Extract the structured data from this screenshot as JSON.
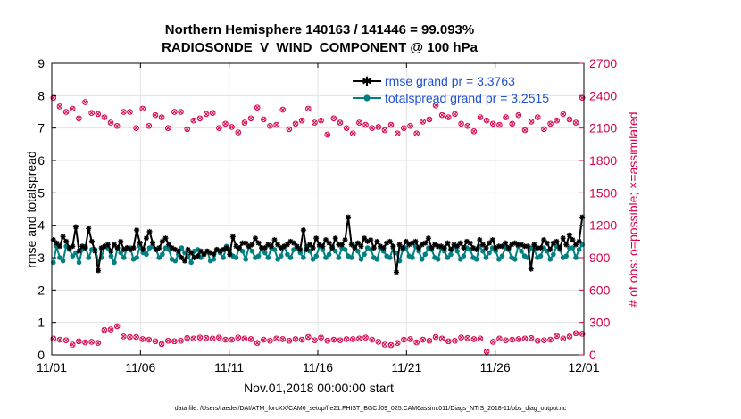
{
  "chart_data": {
    "type": "line",
    "title_line1": "Northern Hemisphere 140163 / 141446 = 99.093%",
    "title_line2": "RADIOSONDE_V_WIND_COMPONENT @ 100 hPa",
    "xlabel": "Nov.01,2018 00:00:00 start",
    "ylabel_left": "rmse and totalspread",
    "ylabel_right": "# of obs: o=possible; ×=assimilated",
    "footer": "data file: /Users/raeder/DAI/ATM_forcXX/CAM6_setup/f.e21.FHIST_BGC.f09_025.CAM6assim.011/Diags_NTrS_2018-11/obs_diag_output.nc",
    "x_range": [
      0,
      30
    ],
    "x_ticks": [
      0,
      5,
      10,
      15,
      20,
      25,
      30
    ],
    "x_tick_labels": [
      "11/01",
      "11/06",
      "11/11",
      "11/16",
      "11/21",
      "11/26",
      "12/01"
    ],
    "y_left_range": [
      0,
      9
    ],
    "y_left_ticks": [
      "0",
      "1",
      "2",
      "3",
      "4",
      "5",
      "6",
      "7",
      "8",
      "9"
    ],
    "y_right_range": [
      0,
      2700
    ],
    "y_right_ticks": [
      "0",
      "300",
      "600",
      "900",
      "1200",
      "1500",
      "1800",
      "2100",
      "2400",
      "2700"
    ],
    "grid": true,
    "legend_position": "top-right",
    "colors": {
      "rmse": "#000000",
      "spread": "#008080",
      "obs": "#d8004a",
      "grid": "#e3e3e3"
    },
    "series": [
      {
        "name": "rmse grand pr = 3.3763",
        "values": [
          3.55,
          3.45,
          3.35,
          3.65,
          3.5,
          3.3,
          3.35,
          3.95,
          3.2,
          3.35,
          3.3,
          3.9,
          3.5,
          3.2,
          2.6,
          3.3,
          3.35,
          3.4,
          3.2,
          3.4,
          3.3,
          3.5,
          3.25,
          3.3,
          3.25,
          3.3,
          3.85,
          3.45,
          3.25,
          3.6,
          3.8,
          3.45,
          3.25,
          3.3,
          3.5,
          3.6,
          3.4,
          3.3,
          3.25,
          3.2,
          3.0,
          2.9,
          3.25,
          3.15,
          3.0,
          3.05,
          3.2,
          3.1,
          3.2,
          3.15,
          3.1,
          3.25,
          3.2,
          3.25,
          3.3,
          3.1,
          3.65,
          3.35,
          3.3,
          3.45,
          3.45,
          3.35,
          3.4,
          3.6,
          3.45,
          3.3,
          3.3,
          3.4,
          3.35,
          3.55,
          3.4,
          3.3,
          3.35,
          3.4,
          3.5,
          3.45,
          3.35,
          3.25,
          3.85,
          3.25,
          3.4,
          3.3,
          3.6,
          3.4,
          3.35,
          3.55,
          3.45,
          3.3,
          3.6,
          3.4,
          3.4,
          3.55,
          4.25,
          3.4,
          3.3,
          3.45,
          3.35,
          3.6,
          3.5,
          3.55,
          3.3,
          3.5,
          3.35,
          3.3,
          3.45,
          3.5,
          3.35,
          2.55,
          3.4,
          3.3,
          3.5,
          3.4,
          3.45,
          3.5,
          3.3,
          3.4,
          3.45,
          3.6,
          3.3,
          3.4,
          3.35,
          3.35,
          3.3,
          3.45,
          3.25,
          3.4,
          3.35,
          3.45,
          3.3,
          3.5,
          3.45,
          3.3,
          3.25,
          3.55,
          3.4,
          3.3,
          3.45,
          3.55,
          3.3,
          3.35,
          3.35,
          3.45,
          3.3,
          3.4,
          3.45,
          3.4,
          3.4,
          3.35,
          3.35,
          2.65,
          3.4,
          3.3,
          3.3,
          3.55,
          3.45,
          3.25,
          3.45,
          3.5,
          3.3,
          3.6,
          3.4,
          3.7,
          3.55,
          3.4,
          3.5,
          4.25
        ]
      },
      {
        "name": "totalspread grand pr = 3.2515",
        "values": [
          2.85,
          3.35,
          3.0,
          2.9,
          3.35,
          3.25,
          3.05,
          3.15,
          2.85,
          3.25,
          3.35,
          3.0,
          3.25,
          3.25,
          2.9,
          3.0,
          3.35,
          3.3,
          3.05,
          2.85,
          3.3,
          3.15,
          3.0,
          3.3,
          3.3,
          2.95,
          3.0,
          3.35,
          3.15,
          3.1,
          3.3,
          3.35,
          3.25,
          3.0,
          3.1,
          3.3,
          3.25,
          2.95,
          2.9,
          3.1,
          3.3,
          3.15,
          3.05,
          2.85,
          3.2,
          3.25,
          3.0,
          3.1,
          3.2,
          2.9,
          2.95,
          3.25,
          3.15,
          3.0,
          3.35,
          3.25,
          3.05,
          3.0,
          3.3,
          3.2,
          2.95,
          3.35,
          3.2,
          3.0,
          3.05,
          3.3,
          3.15,
          3.0,
          3.3,
          3.25,
          2.95,
          3.05,
          3.35,
          3.1,
          3.0,
          3.25,
          3.3,
          3.15,
          3.0,
          3.35,
          3.2,
          2.95,
          3.05,
          3.35,
          3.25,
          3.0,
          3.1,
          3.35,
          3.2,
          3.0,
          3.3,
          3.25,
          3.05,
          3.0,
          3.35,
          3.2,
          2.95,
          3.1,
          3.3,
          3.25,
          3.0,
          2.95,
          3.3,
          3.2,
          3.05,
          3.0,
          3.3,
          3.15,
          2.9,
          3.25,
          3.3,
          3.05,
          3.0,
          3.35,
          3.2,
          2.95,
          3.1,
          3.3,
          3.25,
          3.0,
          2.95,
          3.3,
          3.2,
          3.0,
          3.1,
          3.35,
          3.2,
          2.95,
          3.05,
          3.3,
          3.25,
          3.0,
          2.95,
          3.35,
          3.2,
          3.0,
          3.15,
          3.3,
          3.2,
          2.95,
          3.05,
          3.3,
          3.25,
          3.0,
          2.95,
          3.35,
          3.2,
          3.05,
          3.0,
          3.3,
          3.25,
          3.0,
          3.05,
          3.3,
          3.2,
          2.95,
          3.1,
          3.35,
          3.25,
          3.0,
          3.05,
          3.3,
          3.3,
          3.0,
          3.25,
          3.4
        ]
      },
      {
        "name": "obs possible",
        "values": [
          2380,
          2220,
          2300,
          2280,
          2250,
          2260,
          2280,
          2320,
          2190,
          2220,
          2340,
          2160,
          2240,
          2310,
          2230,
          2270,
          2200,
          2290,
          2150,
          2230,
          2120,
          2200,
          2250,
          2310,
          2250,
          2200,
          2100,
          2180,
          2280,
          2150,
          2120,
          2140,
          2220,
          2180,
          2200,
          2160,
          2100,
          2160,
          2250,
          2200,
          2250,
          2180,
          2090,
          2150,
          2170,
          2100,
          2190,
          2160,
          2230,
          2170,
          2240,
          2150,
          2100,
          2070,
          2140,
          2130,
          2110,
          2240,
          2060,
          2120,
          2150,
          2210,
          2190,
          2150,
          2290,
          2160,
          2180,
          2120,
          2120,
          2250,
          2130,
          2180,
          2270,
          2200,
          2090,
          2250,
          2140,
          2210,
          2170,
          2200,
          2280,
          2100,
          2150,
          2250,
          2170,
          2150,
          2040,
          2110,
          2190,
          2050,
          2150,
          2120,
          2100,
          2130,
          2050,
          2130,
          2150,
          2110,
          2130,
          2080,
          2100,
          2090,
          2110,
          2070,
          2080,
          2100,
          2130,
          2060,
          2050,
          2130,
          2100,
          2080,
          2120,
          2050,
          2050,
          2130,
          2160,
          2230,
          2180,
          2140,
          2310,
          2250,
          2220,
          2230,
          2200,
          2110,
          2230,
          2180,
          2140,
          2200,
          2120,
          2210,
          2070,
          2130,
          2200,
          2060,
          2170,
          2130,
          2140,
          2100,
          2130,
          2170,
          2200,
          2260,
          2140,
          2170,
          2220,
          2110,
          2080,
          2140,
          2160,
          2140,
          2200,
          2220,
          2090,
          2150,
          2140,
          2200,
          2170,
          2140,
          2230,
          2270,
          2180,
          2200,
          2150,
          2100,
          2380
        ]
      },
      {
        "name": "obs assimilated",
        "values": [
          150,
          145,
          140,
          145,
          135,
          130,
          95,
          110,
          125,
          100,
          115,
          110,
          120,
          105,
          110,
          100,
          230,
          225,
          235,
          245,
          265,
          230,
          170,
          135,
          165,
          160,
          165,
          150,
          145,
          155,
          140,
          110,
          125,
          130,
          100,
          115,
          130,
          150,
          125,
          160,
          130,
          100,
          155,
          170,
          150,
          175,
          160,
          165,
          155,
          150,
          150,
          140,
          160,
          145,
          140,
          155,
          140,
          115,
          160,
          130,
          150,
          135,
          145,
          150,
          110,
          150,
          140,
          160,
          130,
          140,
          150,
          165,
          145,
          155,
          130,
          160,
          145,
          135,
          140,
          150,
          165,
          140,
          135,
          150,
          160,
          145,
          130,
          155,
          140,
          150,
          135,
          160,
          145,
          125,
          145,
          165,
          150,
          135,
          160,
          150,
          140,
          155,
          120,
          100,
          95,
          110,
          90,
          85,
          110,
          60,
          140,
          130,
          145,
          150,
          115,
          120,
          140,
          155,
          130,
          145,
          165,
          140,
          150,
          135,
          125,
          145,
          130,
          150,
          160,
          140,
          155,
          135,
          145,
          130,
          150,
          110,
          30,
          145,
          120,
          130,
          150,
          160,
          135,
          150,
          140,
          125,
          145,
          130,
          150,
          140,
          155,
          145,
          130,
          150,
          135,
          150,
          140,
          160,
          175,
          165,
          150,
          180,
          170,
          190,
          200,
          205,
          195
        ]
      }
    ]
  }
}
